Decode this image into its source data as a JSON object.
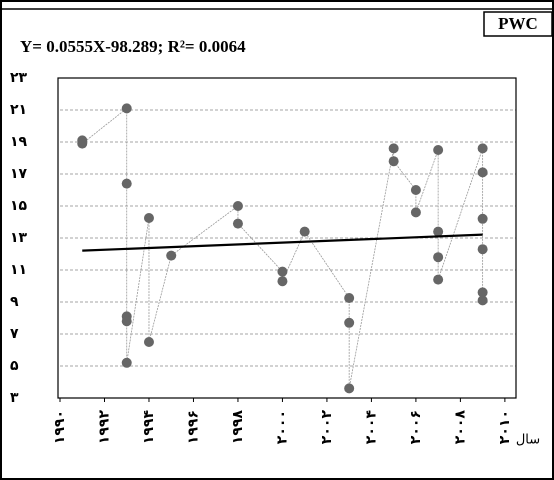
{
  "chart_data": {
    "type": "scatter",
    "badge": "PWC",
    "title": "Y= 0.0555X-98.289; R²= 0.0064",
    "x_label": "سال",
    "x": [
      1991,
      1991,
      1993,
      1993,
      1993,
      1993,
      1993,
      1994,
      1994,
      1995,
      1998,
      1998,
      2000,
      2000,
      2001,
      2003,
      2003,
      2003,
      2005,
      2005,
      2006,
      2006,
      2007,
      2007,
      2007,
      2007,
      2009,
      2009,
      2009,
      2009,
      2009,
      2009
    ],
    "values": [
      19.1,
      18.9,
      21.1,
      16.4,
      8.1,
      7.8,
      5.2,
      14.25,
      6.5,
      11.9,
      15,
      13.9,
      10.9,
      10.3,
      13.4,
      9.25,
      7.7,
      3.6,
      18.6,
      17.8,
      16,
      14.6,
      18.5,
      13.4,
      11.8,
      10.4,
      18.6,
      17.1,
      14.2,
      12.3,
      9.6,
      9.1
    ],
    "color": "#666666",
    "trend_line": {
      "x": [
        1991,
        2009
      ],
      "y": [
        12.21,
        13.21
      ],
      "color": "#000000"
    },
    "xlim": [
      1990,
      2010.5
    ],
    "ylim": [
      3,
      23
    ],
    "xticks": [
      {
        "value": 1990,
        "label": "۱۹۹۰"
      },
      {
        "value": 1992,
        "label": "۱۹۹۲"
      },
      {
        "value": 1994,
        "label": "۱۹۹۴"
      },
      {
        "value": 1996,
        "label": "۱۹۹۶"
      },
      {
        "value": 1998,
        "label": "۱۹۹۸"
      },
      {
        "value": 2000,
        "label": "۲۰۰۰"
      },
      {
        "value": 2002,
        "label": "۲۰۰۲"
      },
      {
        "value": 2004,
        "label": "۲۰۰۴"
      },
      {
        "value": 2006,
        "label": "۲۰۰۶"
      },
      {
        "value": 2008,
        "label": "۲۰۰۸"
      },
      {
        "value": 2010,
        "label": "۲۰۱۰"
      }
    ],
    "yticks": [
      {
        "value": 3,
        "label": "۳"
      },
      {
        "value": 5,
        "label": "۵"
      },
      {
        "value": 7,
        "label": "۷"
      },
      {
        "value": 9,
        "label": "۹"
      },
      {
        "value": 11,
        "label": "۱۱"
      },
      {
        "value": 13,
        "label": "۱۳"
      },
      {
        "value": 15,
        "label": "۱۵"
      },
      {
        "value": 17,
        "label": "۱۷"
      },
      {
        "value": 19,
        "label": "۱۹"
      },
      {
        "value": 21,
        "label": "۲۱"
      },
      {
        "value": 23,
        "label": "۲۳"
      }
    ],
    "grid": true
  }
}
